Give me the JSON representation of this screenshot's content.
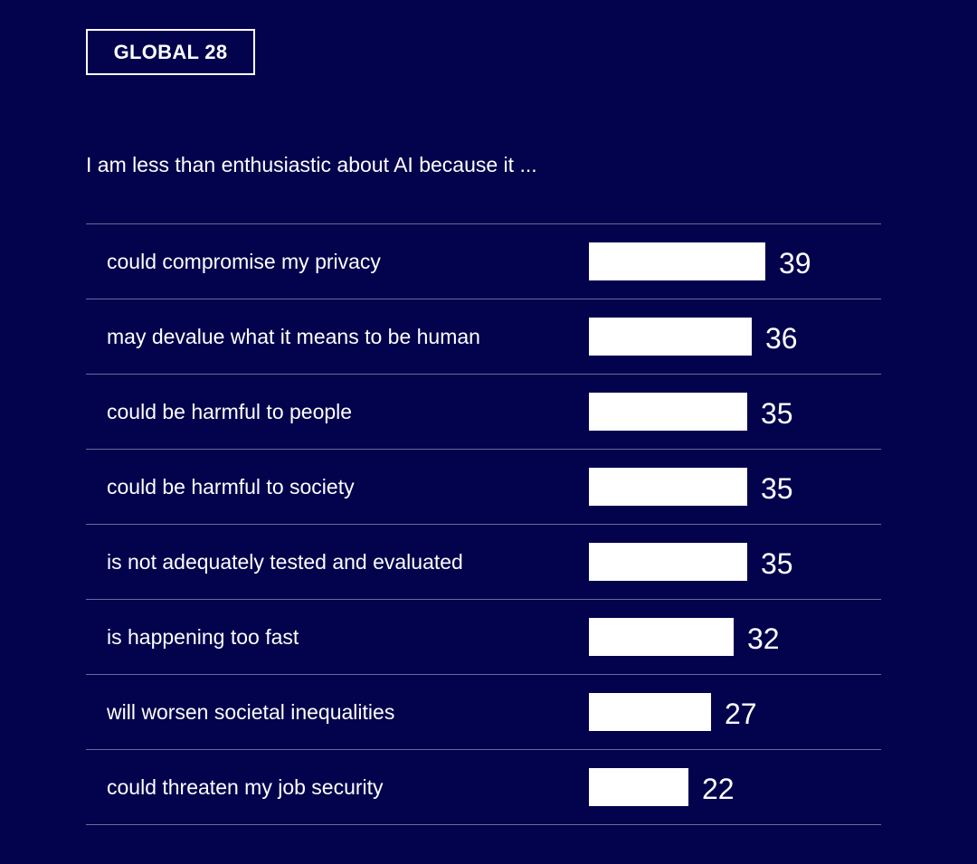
{
  "badge": {
    "label": "GLOBAL 28"
  },
  "chart_data": {
    "type": "bar",
    "orientation": "horizontal",
    "title": "I am less than enthusiastic about AI because it ...",
    "categories": [
      "could compromise my privacy",
      "may devalue what it means to be human",
      "could be harmful to people",
      "could be harmful to society",
      "is not adequately tested and evaluated",
      "is happening too fast",
      "will worsen societal inequalities",
      "could threaten my job security"
    ],
    "values": [
      39,
      36,
      35,
      35,
      35,
      32,
      27,
      22
    ],
    "data_labels": [
      "39",
      "36",
      "35",
      "35",
      "35",
      "32",
      "27",
      "22"
    ],
    "xlim": [
      0,
      100
    ],
    "grid": false,
    "legend": "none",
    "colors": {
      "background": "#02024d",
      "bar": "#ffffff",
      "text": "#ffffff",
      "divider": "#6b6b9a"
    }
  }
}
